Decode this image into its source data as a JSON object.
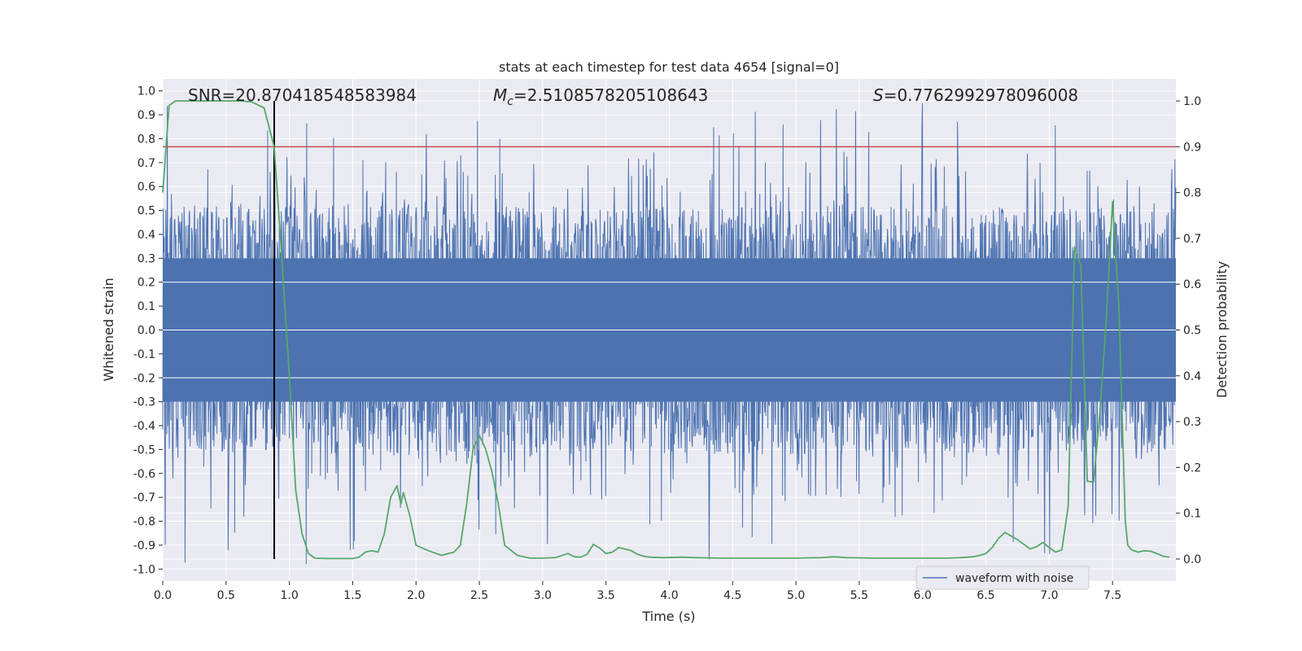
{
  "chart_data": {
    "type": "line",
    "title": "stats at each timestep for test data 4654 [signal=0]",
    "xlabel": "Time (s)",
    "ylabel": "Whitened strain",
    "y2label": "Detection probability",
    "xlim": [
      0,
      8
    ],
    "ylim": [
      -1.05,
      1.05
    ],
    "y2lim": [
      -0.048,
      1.048
    ],
    "xticks": [
      0,
      0.5,
      1,
      1.5,
      2,
      2.5,
      3,
      3.5,
      4,
      4.5,
      5,
      5.5,
      6,
      6.5,
      7,
      7.5
    ],
    "xtick_labels": [
      "0.0",
      "0.5",
      "1.0",
      "1.5",
      "2.0",
      "2.5",
      "3.0",
      "3.5",
      "4.0",
      "4.5",
      "5.0",
      "5.5",
      "6.0",
      "6.5",
      "7.0",
      "7.5"
    ],
    "yticks": [
      1.0,
      0.9,
      0.8,
      0.7,
      0.6,
      0.5,
      0.4,
      0.3,
      0.2,
      0.1,
      0.0,
      -0.1,
      -0.2,
      -0.3,
      -0.4,
      -0.5,
      -0.6,
      -0.7,
      -0.8,
      -0.9,
      -1.0
    ],
    "ytick_labels": [
      "1.0",
      "0.9",
      "0.8",
      "0.7",
      "0.6",
      "0.5",
      "0.4",
      "0.3",
      "0.2",
      "0.1",
      "0.0",
      "-0.1",
      "-0.2",
      "-0.3",
      "-0.4",
      "-0.5",
      "-0.6",
      "-0.7",
      "-0.8",
      "-0.9",
      "-1.0"
    ],
    "y2ticks": [
      1.0,
      0.9,
      0.8,
      0.7,
      0.6,
      0.5,
      0.4,
      0.3,
      0.2,
      0.1,
      0.0
    ],
    "y2tick_labels": [
      "1.0",
      "0.9",
      "0.8",
      "0.7",
      "0.6",
      "0.5",
      "0.4",
      "0.3",
      "0.2",
      "0.1",
      "0.0"
    ],
    "annotations": {
      "snr": "SNR=20.870418548583984",
      "mc_symbol": "M",
      "mc_sub": "c",
      "mc_value": "=2.5108578205108643",
      "s_symbol": "S",
      "s_value": "=0.7762992978096008"
    },
    "legend": {
      "label": "waveform with noise",
      "placement": "lower-right"
    },
    "threshold": {
      "y2": 0.9,
      "color": "#c44e52"
    },
    "marker_time": 0.88,
    "waveform": {
      "name": "waveform with noise",
      "color": "#4c72b0",
      "n_samples": 2000,
      "envelope_min": -1.0,
      "envelope_max": 1.0
    },
    "probability": {
      "name": "detection probability",
      "color": "#55a868",
      "t": [
        0.0,
        0.05,
        0.1,
        0.2,
        0.3,
        0.4,
        0.5,
        0.6,
        0.7,
        0.8,
        0.88,
        0.93,
        1.0,
        1.05,
        1.1,
        1.15,
        1.2,
        1.3,
        1.4,
        1.5,
        1.55,
        1.6,
        1.65,
        1.7,
        1.75,
        1.8,
        1.85,
        1.88,
        1.9,
        1.95,
        2.0,
        2.1,
        2.2,
        2.3,
        2.35,
        2.4,
        2.45,
        2.5,
        2.55,
        2.6,
        2.65,
        2.7,
        2.8,
        2.9,
        3.0,
        3.1,
        3.2,
        3.25,
        3.3,
        3.35,
        3.4,
        3.45,
        3.5,
        3.55,
        3.6,
        3.65,
        3.7,
        3.75,
        3.8,
        3.85,
        3.95,
        4.1,
        4.2,
        4.4,
        4.6,
        4.8,
        5.0,
        5.2,
        5.3,
        5.4,
        5.6,
        5.8,
        6.0,
        6.2,
        6.3,
        6.4,
        6.45,
        6.5,
        6.55,
        6.6,
        6.65,
        6.75,
        6.85,
        6.9,
        6.95,
        7.0,
        7.05,
        7.1,
        7.15,
        7.2,
        7.25,
        7.3,
        7.35,
        7.4,
        7.45,
        7.5,
        7.55,
        7.6,
        7.62,
        7.65,
        7.7,
        7.75,
        7.8,
        7.85,
        7.9,
        7.95
      ],
      "p": [
        0.8,
        0.99,
        1.0,
        1.0,
        1.0,
        1.0,
        1.0,
        1.0,
        0.998,
        0.985,
        0.9,
        0.7,
        0.4,
        0.15,
        0.055,
        0.012,
        0.002,
        0.001,
        0.001,
        0.001,
        0.004,
        0.015,
        0.018,
        0.015,
        0.055,
        0.135,
        0.16,
        0.12,
        0.145,
        0.095,
        0.03,
        0.018,
        0.008,
        0.015,
        0.03,
        0.12,
        0.24,
        0.27,
        0.24,
        0.19,
        0.12,
        0.03,
        0.008,
        0.002,
        0.002,
        0.003,
        0.012,
        0.005,
        0.004,
        0.01,
        0.032,
        0.024,
        0.012,
        0.015,
        0.025,
        0.022,
        0.018,
        0.01,
        0.006,
        0.004,
        0.003,
        0.004,
        0.003,
        0.002,
        0.002,
        0.002,
        0.002,
        0.003,
        0.005,
        0.003,
        0.002,
        0.002,
        0.002,
        0.002,
        0.003,
        0.005,
        0.008,
        0.012,
        0.025,
        0.045,
        0.058,
        0.042,
        0.022,
        0.027,
        0.036,
        0.025,
        0.015,
        0.02,
        0.115,
        0.68,
        0.64,
        0.17,
        0.168,
        0.32,
        0.52,
        0.78,
        0.55,
        0.085,
        0.03,
        0.02,
        0.015,
        0.018,
        0.017,
        0.012,
        0.006,
        0.004
      ]
    }
  }
}
